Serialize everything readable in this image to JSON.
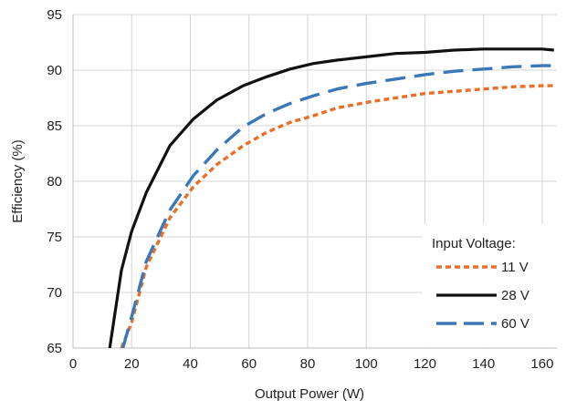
{
  "chart_data": {
    "type": "line",
    "xlabel": "Output Power (W)",
    "ylabel": "Efficiency (%)",
    "xlim": [
      0,
      165
    ],
    "ylim": [
      65,
      95
    ],
    "xticks": [
      0,
      20,
      40,
      60,
      80,
      100,
      120,
      140,
      160
    ],
    "yticks": [
      65,
      70,
      75,
      80,
      85,
      90,
      95
    ],
    "grid": true,
    "legend": {
      "title": "Input Voltage:",
      "placement": "bottom-right"
    },
    "series": [
      {
        "name": "11 V",
        "color": "#E8702A",
        "dash": "dotted",
        "x": [
          16.5,
          20,
          25,
          33,
          41,
          49,
          58,
          66,
          74,
          82,
          90,
          100,
          110,
          120,
          130,
          140,
          150,
          160,
          164
        ],
        "y": [
          65,
          67.3,
          72.3,
          76.7,
          79.5,
          81.5,
          83.2,
          84.4,
          85.3,
          85.9,
          86.6,
          87.1,
          87.5,
          87.9,
          88.1,
          88.3,
          88.5,
          88.6,
          88.6
        ]
      },
      {
        "name": "28 V",
        "color": "#111111",
        "dash": "solid",
        "x": [
          12.5,
          16.5,
          20,
          25,
          33,
          41,
          49,
          58,
          66,
          74,
          82,
          90,
          100,
          110,
          120,
          130,
          140,
          150,
          160,
          164
        ],
        "y": [
          65,
          72,
          75.5,
          79,
          83.2,
          85.6,
          87.3,
          88.6,
          89.4,
          90.1,
          90.6,
          90.9,
          91.2,
          91.5,
          91.6,
          91.8,
          91.9,
          91.9,
          91.9,
          91.8
        ]
      },
      {
        "name": "60 V",
        "color": "#3B78B8",
        "dash": "dashed",
        "x": [
          17,
          20,
          25,
          33,
          41,
          49,
          58,
          66,
          74,
          82,
          90,
          100,
          110,
          120,
          130,
          140,
          150,
          160,
          164
        ],
        "y": [
          65,
          67.8,
          72.8,
          77.4,
          80.5,
          82.8,
          84.9,
          86.1,
          87.0,
          87.7,
          88.3,
          88.8,
          89.2,
          89.6,
          89.9,
          90.1,
          90.3,
          90.4,
          90.4
        ]
      }
    ]
  }
}
